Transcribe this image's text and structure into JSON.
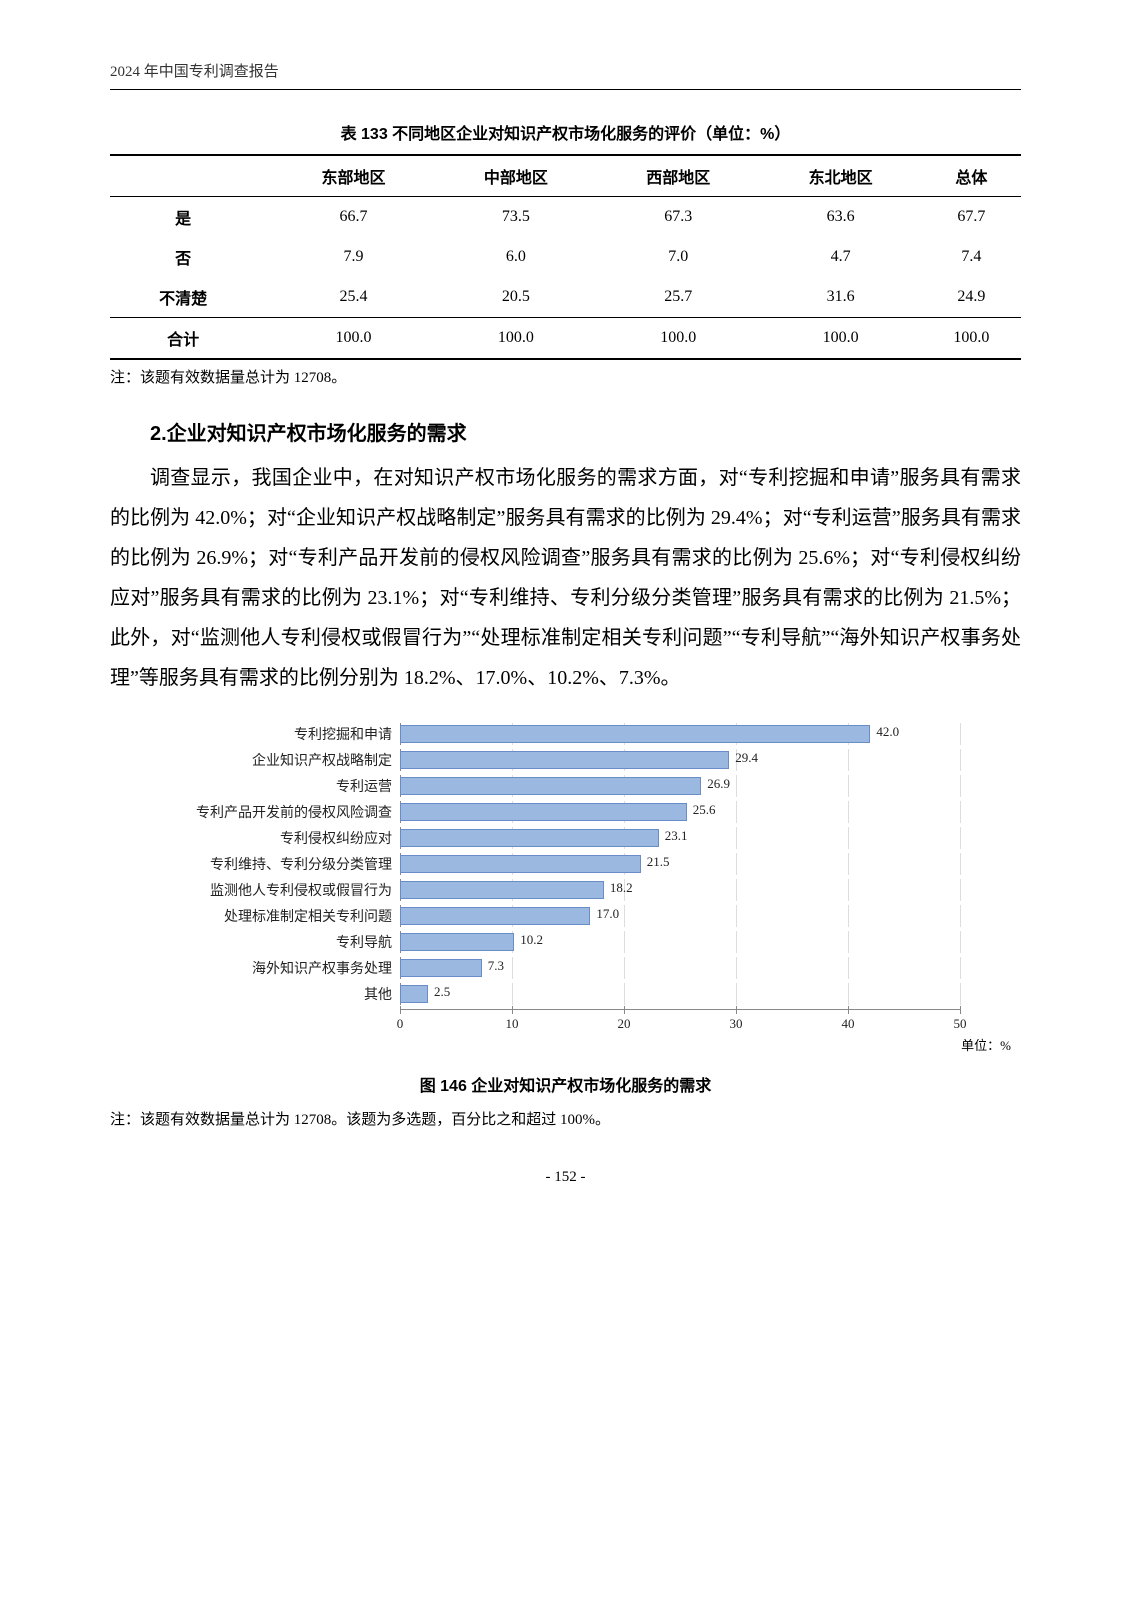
{
  "header": {
    "title": "2024 年中国专利调查报告"
  },
  "table": {
    "caption": "表 133  不同地区企业对知识产权市场化服务的评价（单位：%）",
    "columns": [
      "",
      "东部地区",
      "中部地区",
      "西部地区",
      "东北地区",
      "总体"
    ],
    "rows": [
      {
        "label": "是",
        "cells": [
          "66.7",
          "73.5",
          "67.3",
          "63.6",
          "67.7"
        ]
      },
      {
        "label": "否",
        "cells": [
          "7.9",
          "6.0",
          "7.0",
          "4.7",
          "7.4"
        ]
      },
      {
        "label": "不清楚",
        "cells": [
          "25.4",
          "20.5",
          "25.7",
          "31.6",
          "24.9"
        ]
      }
    ],
    "total": {
      "label": "合计",
      "cells": [
        "100.0",
        "100.0",
        "100.0",
        "100.0",
        "100.0"
      ]
    },
    "note": "注：该题有效数据量总计为 12708。"
  },
  "section": {
    "heading": "2.企业对知识产权市场化服务的需求",
    "paragraph": "调查显示，我国企业中，在对知识产权市场化服务的需求方面，对“专利挖掘和申请”服务具有需求的比例为 42.0%；对“企业知识产权战略制定”服务具有需求的比例为 29.4%；对“专利运营”服务具有需求的比例为 26.9%；对“专利产品开发前的侵权风险调查”服务具有需求的比例为 25.6%；对“专利侵权纠纷应对”服务具有需求的比例为 23.1%；对“专利维持、专利分级分类管理”服务具有需求的比例为 21.5%；此外，对“监测他人专利侵权或假冒行为”“处理标准制定相关专利问题”“专利导航”“海外知识产权事务处理”等服务具有需求的比例分别为 18.2%、17.0%、10.2%、7.3%。"
  },
  "chart": {
    "type": "bar-horizontal",
    "xlim": [
      0,
      50
    ],
    "xticks": [
      0,
      10,
      20,
      30,
      40,
      50
    ],
    "bar_color": "#9bb8e0",
    "bar_border": "#6a8cc7",
    "grid_color": "#dddddd",
    "axis_color": "#888888",
    "label_fontsize": 14,
    "value_fontsize": 13,
    "unit_label": "单位：%",
    "items": [
      {
        "label": "专利挖掘和申请",
        "value": 42.0
      },
      {
        "label": "企业知识产权战略制定",
        "value": 29.4
      },
      {
        "label": "专利运营",
        "value": 26.9
      },
      {
        "label": "专利产品开发前的侵权风险调查",
        "value": 25.6
      },
      {
        "label": "专利侵权纠纷应对",
        "value": 23.1
      },
      {
        "label": "专利维持、专利分级分类管理",
        "value": 21.5
      },
      {
        "label": "监测他人专利侵权或假冒行为",
        "value": 18.2
      },
      {
        "label": "处理标准制定相关专利问题",
        "value": 17.0
      },
      {
        "label": "专利导航",
        "value": 10.2
      },
      {
        "label": "海外知识产权事务处理",
        "value": 7.3
      },
      {
        "label": "其他",
        "value": 2.5
      }
    ],
    "caption": "图 146  企业对知识产权市场化服务的需求",
    "note": "注：该题有效数据量总计为 12708。该题为多选题，百分比之和超过 100%。"
  },
  "page_number": "- 152 -"
}
